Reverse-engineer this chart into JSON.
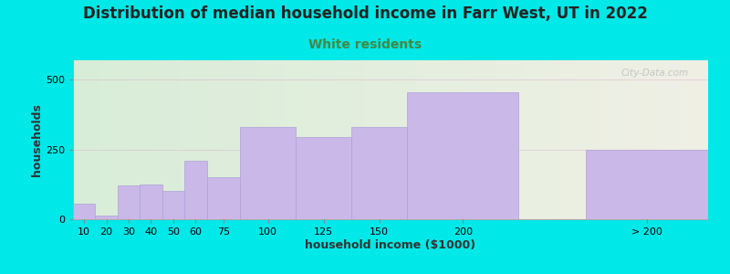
{
  "title": "Distribution of median household income in Farr West, UT in 2022",
  "subtitle": "White residents",
  "xlabel": "household income ($1000)",
  "ylabel": "households",
  "categories": [
    "10",
    "20",
    "30",
    "40",
    "50",
    "60",
    "75",
    "100",
    "125",
    "150",
    "200",
    "> 200"
  ],
  "bar_lefts": [
    0,
    10,
    20,
    30,
    40,
    50,
    60,
    75,
    100,
    125,
    150,
    230
  ],
  "bar_widths": [
    10,
    10,
    10,
    10,
    10,
    10,
    15,
    25,
    25,
    25,
    50,
    55
  ],
  "values": [
    55,
    12,
    120,
    125,
    100,
    210,
    150,
    330,
    295,
    330,
    455,
    248
  ],
  "bar_color": "#c9b8e8",
  "bar_edge_color": "#b0a0d8",
  "background_outer": "#00e8e8",
  "background_inner_left": "#d8edd8",
  "background_inner_right": "#f0f0e5",
  "yticks": [
    0,
    250,
    500
  ],
  "ylim": [
    0,
    570
  ],
  "xlim": [
    0,
    285
  ],
  "title_fontsize": 12,
  "subtitle_fontsize": 10,
  "subtitle_color": "#448844",
  "axis_label_fontsize": 9,
  "tick_fontsize": 8,
  "watermark": "City-Data.com",
  "tick_positions": [
    5,
    15,
    25,
    35,
    45,
    55,
    67.5,
    87.5,
    112.5,
    137.5,
    175,
    257.5
  ],
  "tick_labels": [
    "10",
    "20",
    "30",
    "40",
    "50",
    "60",
    "75",
    "100",
    "125",
    "150",
    "200",
    "> 200"
  ]
}
